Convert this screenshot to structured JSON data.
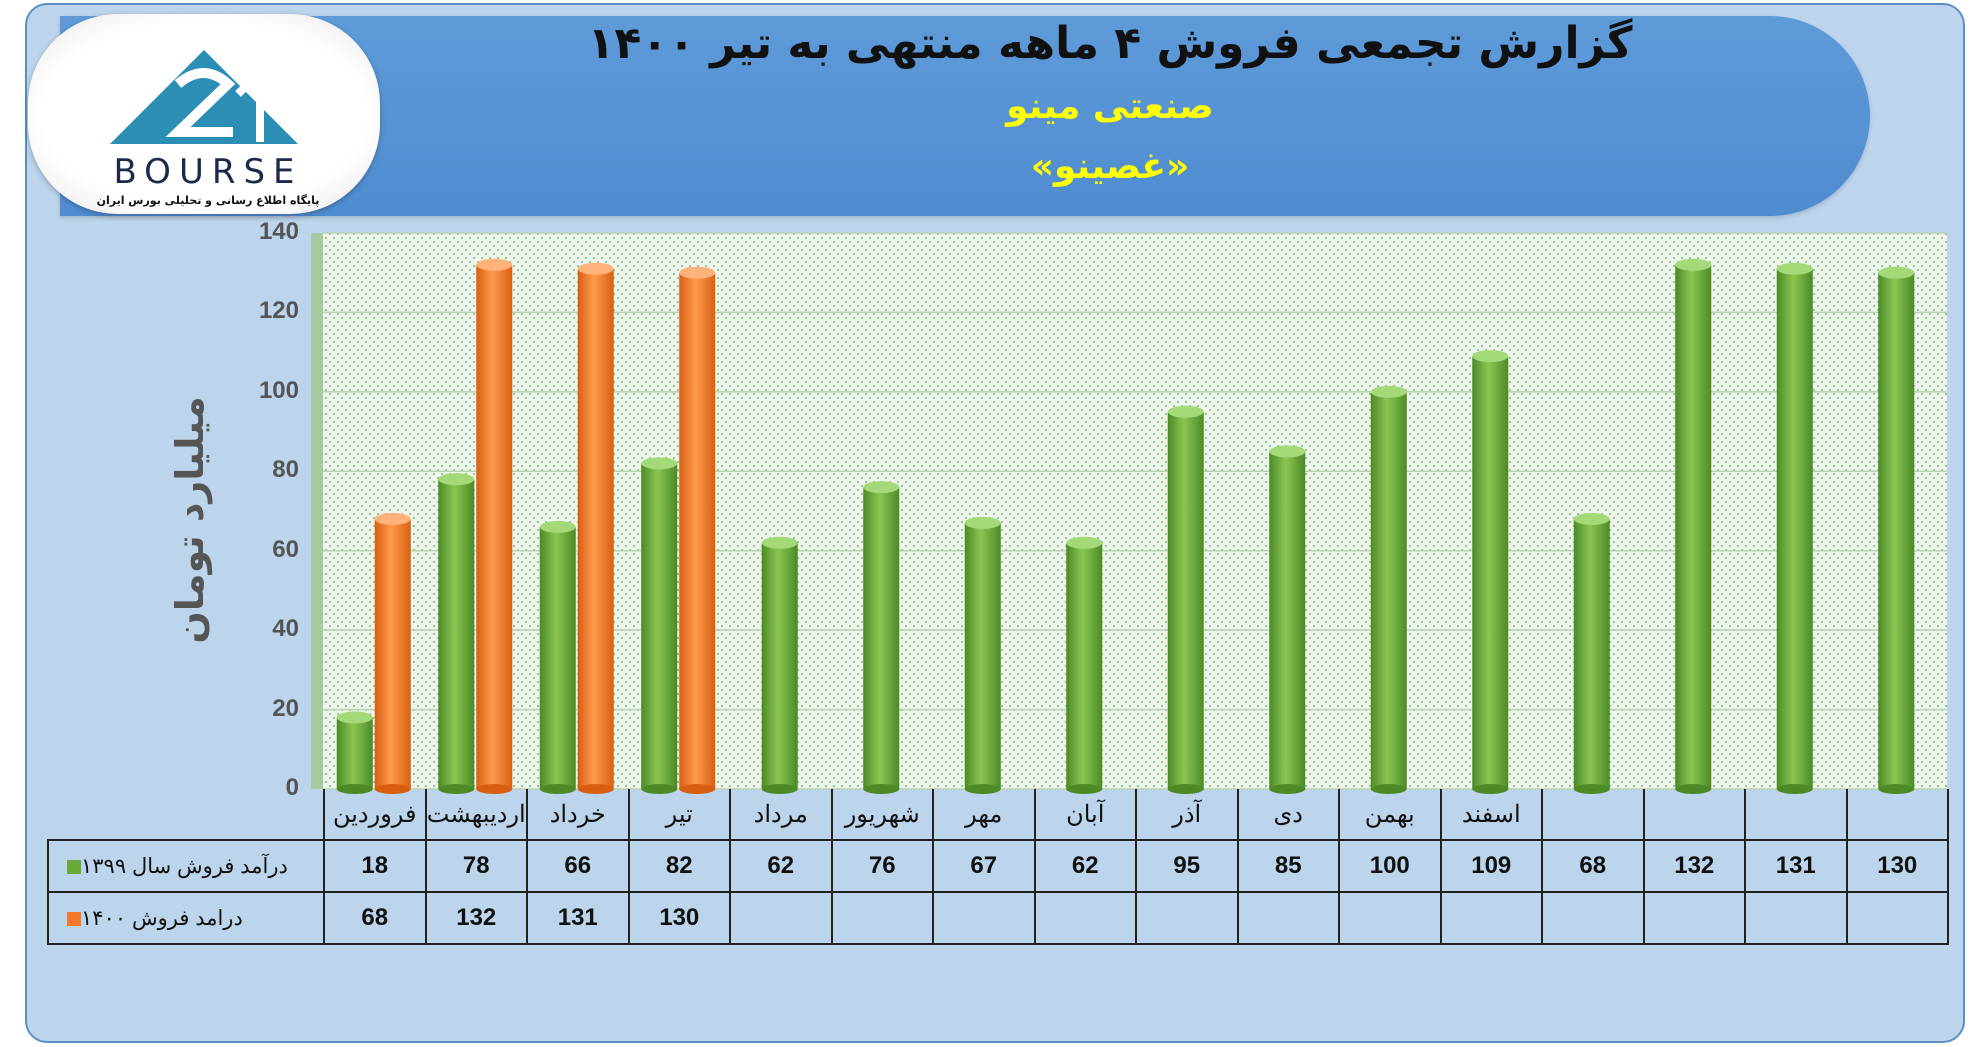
{
  "header": {
    "title": "گزارش تجمعی فروش ۴ ماهه منتهی به تیر ۱۴۰۰",
    "company": "صنعتی مینو",
    "ticker": "«غصینو»"
  },
  "logo": {
    "word": "BOURSE",
    "tagline": "پایگاه اطلاع رسانی و تحلیلی بورس ایران"
  },
  "colors": {
    "series_1399": "#6aaa3a",
    "series_1400": "#f07a2a",
    "title_accent": "#ffff00",
    "banner": "#5a96d6",
    "background": "#bcd4ec"
  },
  "chart_data": {
    "type": "bar",
    "ylabel": "میلیارد تومان",
    "ylim": [
      0,
      140
    ],
    "yticks": [
      0,
      20,
      40,
      60,
      80,
      100,
      120,
      140
    ],
    "grid": true,
    "categories": [
      "فروردین",
      "اردیبهشت",
      "خرداد",
      "تیر",
      "مرداد",
      "شهریور",
      "مهر",
      "آبان",
      "آذر",
      "دی",
      "بهمن",
      "اسفند",
      "",
      "",
      "",
      ""
    ],
    "series": [
      {
        "name": "درآمد فروش سال ۱۳۹۹",
        "color": "#6aaa3a",
        "values": [
          18,
          78,
          66,
          82,
          62,
          76,
          67,
          62,
          95,
          85,
          100,
          109,
          68,
          132,
          131,
          130
        ]
      },
      {
        "name": "درامد فروش ۱۴۰۰",
        "color": "#f07a2a",
        "values": [
          68,
          132,
          131,
          130,
          null,
          null,
          null,
          null,
          null,
          null,
          null,
          null,
          null,
          null,
          null,
          null
        ]
      }
    ]
  }
}
